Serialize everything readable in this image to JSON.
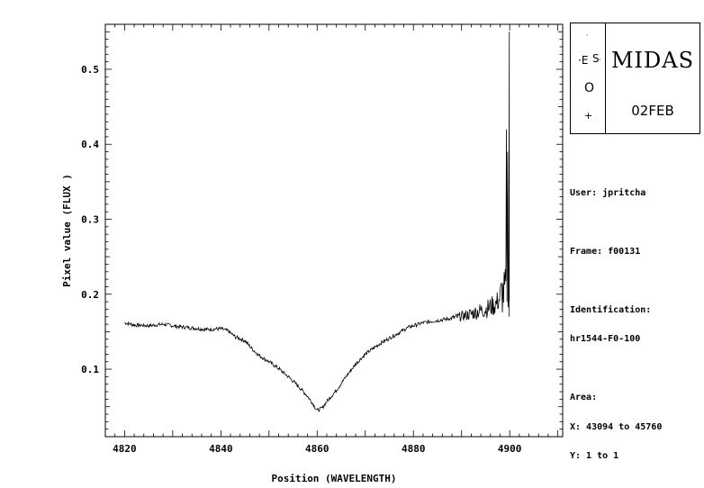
{
  "chart_data": {
    "type": "line",
    "title": "",
    "xlabel": "Position (WAVELENGTH)",
    "ylabel": "Pixel value (FLUX )",
    "xlim": [
      4816,
      4911
    ],
    "ylim": [
      0.01,
      0.56
    ],
    "x_ticks": [
      4820,
      4840,
      4860,
      4880,
      4900
    ],
    "y_ticks": [
      0.1,
      0.2,
      0.3,
      0.4,
      0.5
    ],
    "grid": false,
    "legend": "none",
    "line_color": "#000000",
    "series": [
      {
        "x": [
          4820,
          4822,
          4825,
          4828,
          4831,
          4834,
          4837,
          4840,
          4841.5,
          4843,
          4845,
          4846.5,
          4848,
          4850,
          4852,
          4854,
          4856,
          4858,
          4859,
          4860,
          4861,
          4862,
          4864,
          4866,
          4868,
          4870,
          4873,
          4876,
          4879,
          4882,
          4885,
          4888,
          4891,
          4893,
          4895,
          4897,
          4898,
          4899,
          4899.6,
          4900
        ],
        "y": [
          0.162,
          0.159,
          0.158,
          0.16,
          0.157,
          0.155,
          0.153,
          0.154,
          0.151,
          0.143,
          0.138,
          0.127,
          0.118,
          0.11,
          0.101,
          0.09,
          0.078,
          0.064,
          0.055,
          0.045,
          0.048,
          0.057,
          0.072,
          0.09,
          0.107,
          0.12,
          0.134,
          0.145,
          0.156,
          0.162,
          0.165,
          0.168,
          0.172,
          0.176,
          0.18,
          0.186,
          0.195,
          0.205,
          0.21,
          0.215
        ]
      }
    ]
  },
  "midas_panel": {
    "midas_title": "MIDAS",
    "date_label": "02FEB",
    "eso_logo": "ESO"
  },
  "info": {
    "user": "User: jpritcha",
    "frame": "Frame: f00131",
    "identification_label": "Identification:",
    "identification_value": "hr1544-F0-100",
    "area_label": "Area:",
    "x_range": "X: 43094 to 45760",
    "y_range": "Y: 1 to 1"
  }
}
